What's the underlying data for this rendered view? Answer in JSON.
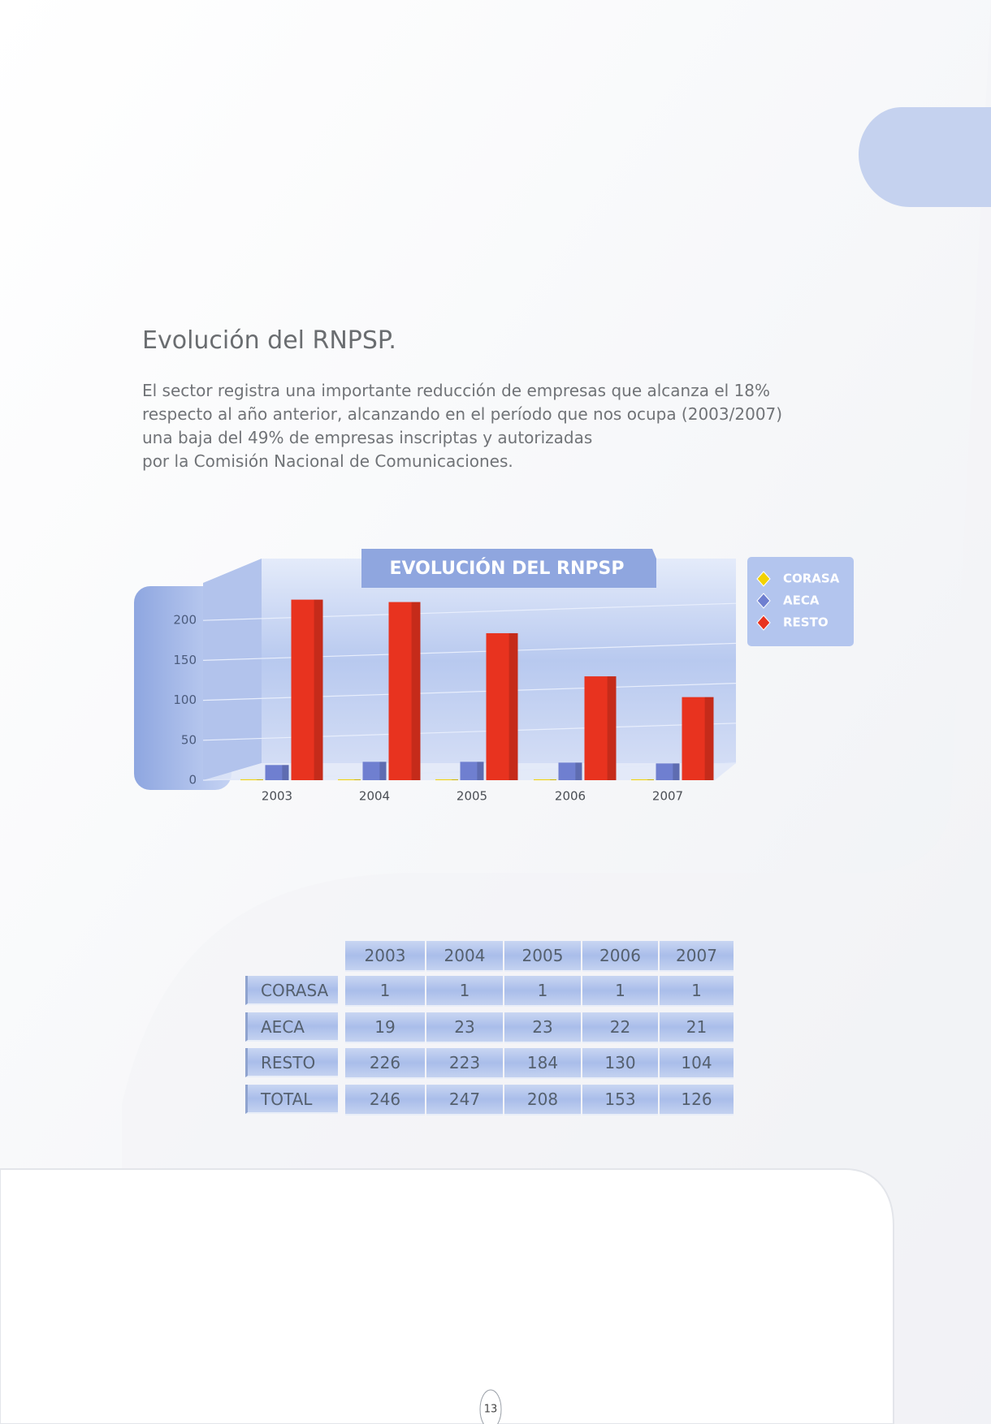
{
  "heading": "Evolución del RNPSP.",
  "paragraph": [
    "El sector registra una importante reducción de empresas que alcanza el 18%",
    "respecto al año anterior, alcanzando en el período que nos ocupa (2003/2007)",
    "una baja del 49% de empresas inscriptas y autorizadas",
    "por la Comisión Nacional de Comunicaciones."
  ],
  "chart_data": {
    "type": "bar",
    "title": "EVOLUCIÓN DEL RNPSP",
    "categories": [
      "2003",
      "2004",
      "2005",
      "2006",
      "2007"
    ],
    "series": [
      {
        "name": "CORASA",
        "color": "#f2d200",
        "values": [
          1,
          1,
          1,
          1,
          1
        ]
      },
      {
        "name": "AECA",
        "color": "#6f7fd0",
        "values": [
          19,
          23,
          23,
          22,
          21
        ]
      },
      {
        "name": "RESTO",
        "color": "#e8331f",
        "values": [
          226,
          223,
          184,
          130,
          104
        ]
      }
    ],
    "ylim": [
      0,
      250
    ],
    "yticks": [
      0,
      50,
      100,
      150,
      200
    ],
    "grid": true,
    "legend": "right"
  },
  "table": {
    "columns": [
      "2003",
      "2004",
      "2005",
      "2006",
      "2007"
    ],
    "rows": [
      {
        "label": "CORASA",
        "values": [
          "1",
          "1",
          "1",
          "1",
          "1"
        ]
      },
      {
        "label": "AECA",
        "values": [
          "19",
          "23",
          "23",
          "22",
          "21"
        ]
      },
      {
        "label": "RESTO",
        "values": [
          "226",
          "223",
          "184",
          "130",
          "104"
        ]
      },
      {
        "label": "TOTAL",
        "values": [
          "246",
          "247",
          "208",
          "153",
          "126"
        ]
      }
    ]
  },
  "page_number": "13"
}
